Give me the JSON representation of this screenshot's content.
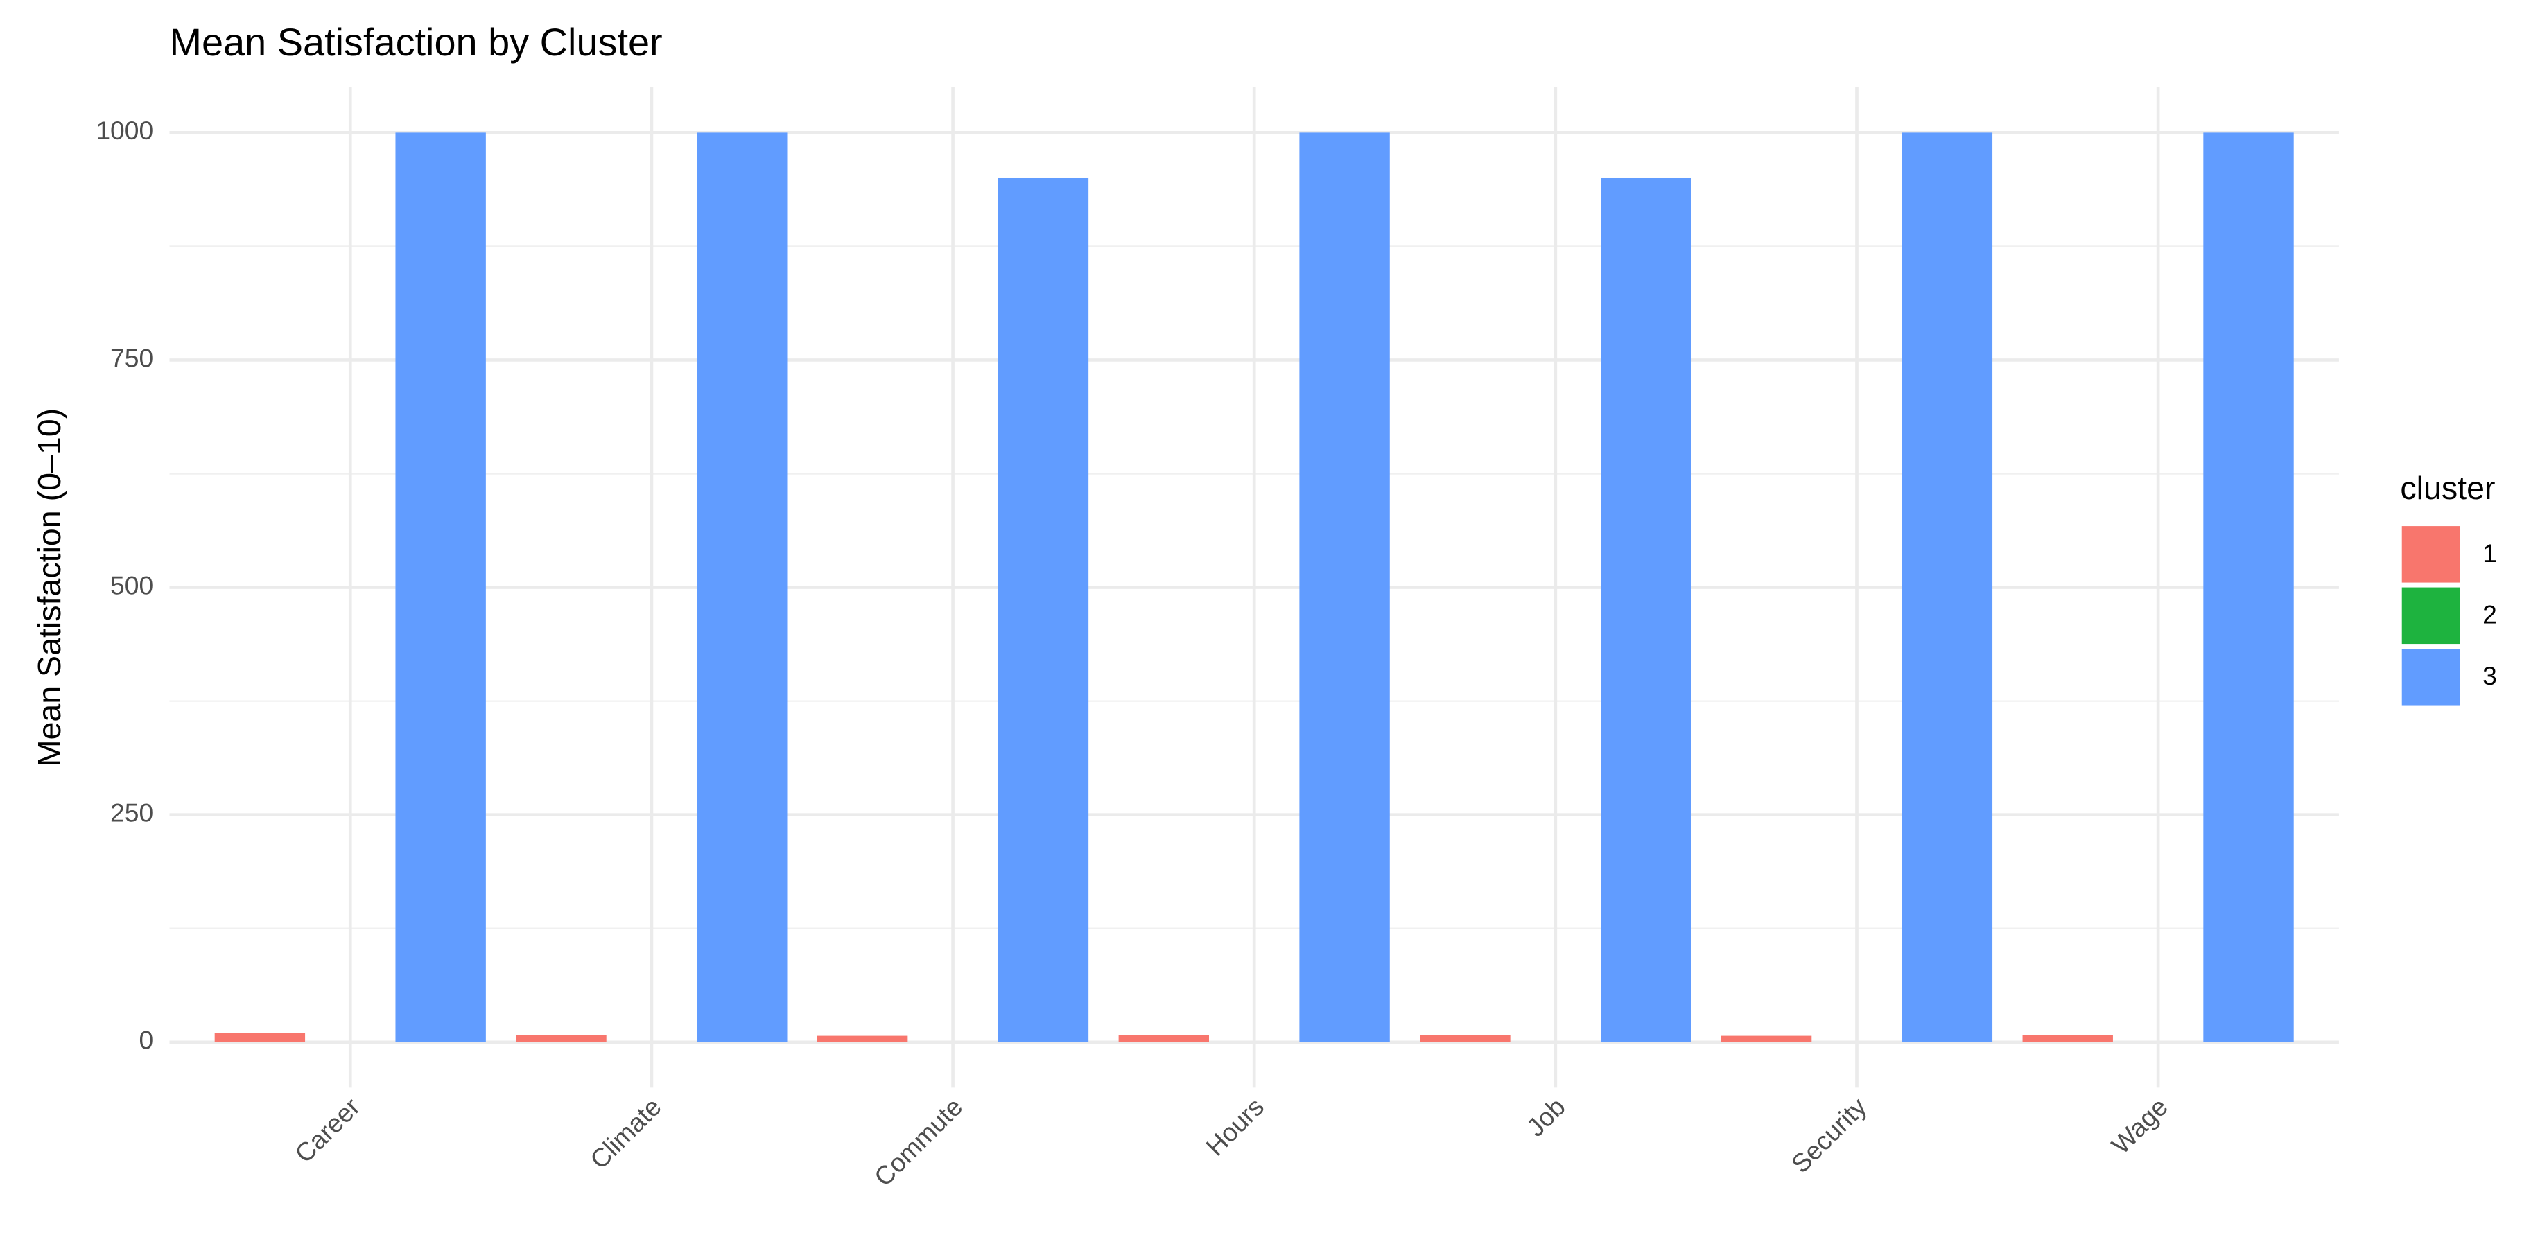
{
  "chart_data": {
    "type": "bar",
    "title": "Mean Satisfaction by Cluster",
    "y_label": "Mean Satisfaction (0–10)",
    "categories": [
      "Career",
      "Climate",
      "Commute",
      "Hours",
      "Job",
      "Security",
      "Wage"
    ],
    "series": [
      {
        "name": "1",
        "color": "#f8766d",
        "values": [
          10,
          8,
          7,
          8,
          8,
          7,
          8
        ]
      },
      {
        "name": "2",
        "color": "#1eb33f",
        "values": [
          0,
          0,
          0,
          0,
          0,
          0,
          0
        ]
      },
      {
        "name": "3",
        "color": "#619cff",
        "values": [
          1000,
          1000,
          950,
          1000,
          950,
          1000,
          1000
        ]
      }
    ],
    "legend_title": "cluster",
    "legend": "right",
    "ylim": [
      -50,
      1050
    ],
    "yticks": [
      0,
      250,
      500,
      750,
      1000
    ],
    "minor_yticks": [
      125,
      375,
      625,
      875
    ],
    "grid": true
  }
}
